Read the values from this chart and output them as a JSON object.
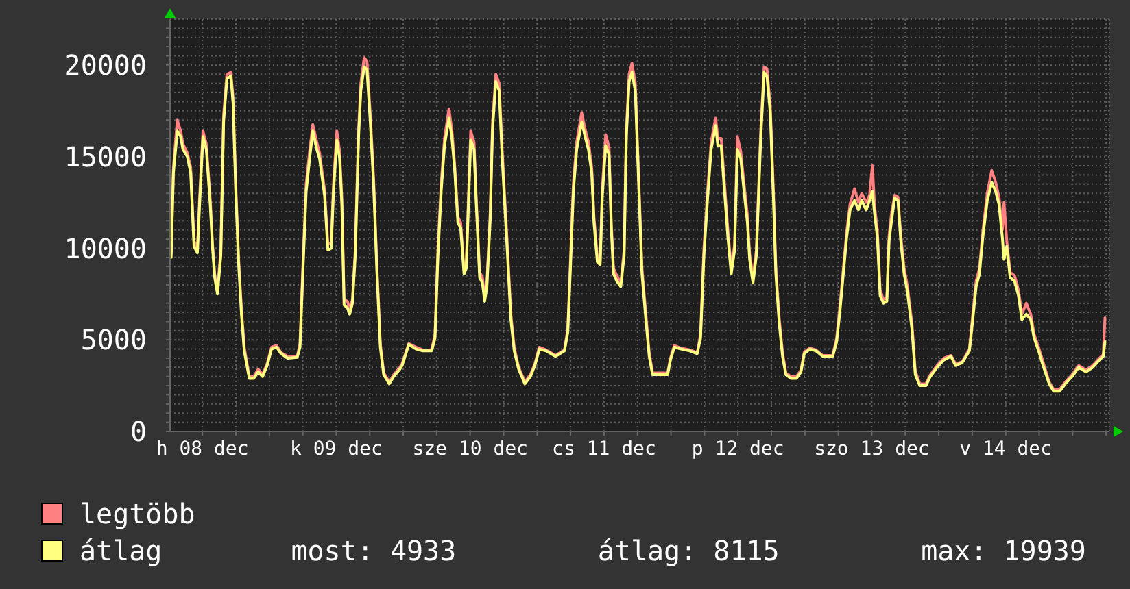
{
  "chart_data": {
    "type": "line",
    "grid": true,
    "legend": "bottom left",
    "xlim": [
      "--12-08T06:12",
      "--12-15T06:36"
    ],
    "xticks": [
      {
        "value": "--12-08T12:00",
        "label": "h 08 dec"
      },
      {
        "value": "--12-08T18:00",
        "label": null
      },
      {
        "value": "--12-09T00:00",
        "label": null
      },
      {
        "value": "--12-09T06:00",
        "label": null
      },
      {
        "value": "--12-09T12:00",
        "label": "k 09 dec"
      },
      {
        "value": "--12-09T18:00",
        "label": null
      },
      {
        "value": "--12-10T00:00",
        "label": null
      },
      {
        "value": "--12-10T06:00",
        "label": null
      },
      {
        "value": "--12-10T12:00",
        "label": "sze 10 dec"
      },
      {
        "value": "--12-10T18:00",
        "label": null
      },
      {
        "value": "--12-11T00:00",
        "label": null
      },
      {
        "value": "--12-11T06:00",
        "label": null
      },
      {
        "value": "--12-11T12:00",
        "label": "cs 11 dec"
      },
      {
        "value": "--12-11T18:00",
        "label": null
      },
      {
        "value": "--12-12T00:00",
        "label": null
      },
      {
        "value": "--12-12T06:00",
        "label": null
      },
      {
        "value": "--12-12T12:00",
        "label": "p 12 dec"
      },
      {
        "value": "--12-12T18:00",
        "label": null
      },
      {
        "value": "--12-13T00:00",
        "label": null
      },
      {
        "value": "--12-13T06:00",
        "label": null
      },
      {
        "value": "--12-13T12:00",
        "label": "szo 13 dec"
      },
      {
        "value": "--12-13T18:00",
        "label": null
      },
      {
        "value": "--12-14T00:00",
        "label": null
      },
      {
        "value": "--12-14T06:00",
        "label": null
      },
      {
        "value": "--12-14T12:00",
        "label": "v 14 dec"
      },
      {
        "value": "--12-14T18:00",
        "label": null
      },
      {
        "value": "--12-15T00:00",
        "label": null
      },
      {
        "value": "--12-15T06:00",
        "label": null
      }
    ],
    "ylim": [
      0,
      22500
    ],
    "yticks": [
      0,
      {
        "value": 500,
        "label": null
      },
      {
        "value": 1000,
        "label": null
      },
      {
        "value": 1500,
        "label": null
      },
      {
        "value": 2000,
        "label": null
      },
      {
        "value": 2500,
        "label": null
      },
      {
        "value": 3000,
        "label": null
      },
      {
        "value": 3500,
        "label": null
      },
      {
        "value": 4000,
        "label": null
      },
      {
        "value": 4500,
        "label": null
      },
      5000,
      {
        "value": 5500,
        "label": null
      },
      {
        "value": 6000,
        "label": null
      },
      {
        "value": 6500,
        "label": null
      },
      {
        "value": 7000,
        "label": null
      },
      {
        "value": 7500,
        "label": null
      },
      {
        "value": 8000,
        "label": null
      },
      {
        "value": 8500,
        "label": null
      },
      {
        "value": 9000,
        "label": null
      },
      {
        "value": 9500,
        "label": null
      },
      10000,
      {
        "value": 10500,
        "label": null
      },
      {
        "value": 11000,
        "label": null
      },
      {
        "value": 11500,
        "label": null
      },
      {
        "value": 12000,
        "label": null
      },
      {
        "value": 12500,
        "label": null
      },
      {
        "value": 13000,
        "label": null
      },
      {
        "value": 13500,
        "label": null
      },
      {
        "value": 14000,
        "label": null
      },
      {
        "value": 14500,
        "label": null
      },
      15000,
      {
        "value": 15500,
        "label": null
      },
      {
        "value": 16000,
        "label": null
      },
      {
        "value": 16500,
        "label": null
      },
      {
        "value": 17000,
        "label": null
      },
      {
        "value": 17500,
        "label": null
      },
      {
        "value": 18000,
        "label": null
      },
      {
        "value": 18500,
        "label": null
      },
      {
        "value": 19000,
        "label": null
      },
      {
        "value": 19500,
        "label": null
      },
      20000,
      {
        "value": 20500,
        "label": null
      },
      {
        "value": 21000,
        "label": null
      },
      {
        "value": 21500,
        "label": null
      },
      {
        "value": 22000,
        "label": null
      }
    ],
    "x": [
      "--12-08T06:24",
      "--12-08T06:48",
      "--12-08T07:30",
      "--12-08T08:06",
      "--12-08T08:30",
      "--12-08T09:18",
      "--12-08T09:54",
      "--12-08T10:30",
      "--12-08T11:06",
      "--12-08T11:30",
      "--12-08T12:06",
      "--12-08T12:42",
      "--12-08T13:24",
      "--12-08T13:48",
      "--12-08T14:12",
      "--12-08T14:42",
      "--12-08T15:18",
      "--12-08T15:48",
      "--12-08T16:24",
      "--12-08T17:06",
      "--12-08T17:30",
      "--12-08T18:00",
      "--12-08T18:30",
      "--12-08T19:00",
      "--12-08T19:30",
      "--12-08T20:24",
      "--12-08T21:12",
      "--12-08T22:00",
      "--12-08T22:48",
      "--12-08T23:36",
      "--12-09T00:24",
      "--12-09T01:18",
      "--12-09T02:06",
      "--12-09T03:18",
      "--12-09T05:00",
      "--12-09T05:30",
      "--12-09T06:00",
      "--12-09T06:36",
      "--12-09T07:18",
      "--12-09T07:48",
      "--12-09T08:30",
      "--12-09T09:00",
      "--12-09T09:54",
      "--12-09T10:30",
      "--12-09T11:06",
      "--12-09T11:30",
      "--12-09T12:06",
      "--12-09T12:36",
      "--12-09T13:00",
      "--12-09T13:24",
      "--12-09T14:00",
      "--12-09T14:24",
      "--12-09T14:54",
      "--12-09T15:24",
      "--12-09T16:00",
      "--12-09T16:24",
      "--12-09T17:00",
      "--12-09T17:30",
      "--12-09T18:06",
      "--12-09T18:42",
      "--12-09T19:18",
      "--12-09T19:54",
      "--12-09T20:30",
      "--12-09T21:30",
      "--12-09T22:18",
      "--12-09T23:24",
      "--12-09T23:48",
      "--12-10T01:00",
      "--12-10T02:18",
      "--12-10T03:30",
      "--12-10T05:06",
      "--12-10T05:42",
      "--12-10T06:12",
      "--12-10T06:48",
      "--12-10T07:24",
      "--12-10T08:12",
      "--12-10T08:42",
      "--12-10T09:12",
      "--12-10T09:48",
      "--12-10T10:18",
      "--12-10T10:54",
      "--12-10T11:18",
      "--12-10T11:42",
      "--12-10T12:06",
      "--12-10T12:42",
      "--12-10T13:06",
      "--12-10T13:42",
      "--12-10T14:12",
      "--12-10T14:36",
      "--12-10T15:00",
      "--12-10T15:36",
      "--12-10T16:00",
      "--12-10T16:36",
      "--12-10T17:12",
      "--12-10T17:48",
      "--12-10T18:42",
      "--12-10T19:18",
      "--12-10T19:54",
      "--12-10T20:42",
      "--12-10T21:48",
      "--12-10T22:48",
      "--12-10T23:36",
      "--12-11T00:24",
      "--12-11T01:36",
      "--12-11T03:18",
      "--12-11T04:54",
      "--12-11T05:30",
      "--12-11T06:00",
      "--12-11T06:30",
      "--12-11T07:06",
      "--12-11T08:00",
      "--12-11T08:36",
      "--12-11T09:12",
      "--12-11T09:48",
      "--12-11T10:12",
      "--12-11T10:48",
      "--12-11T11:18",
      "--12-11T11:42",
      "--12-11T12:18",
      "--12-11T12:54",
      "--12-11T13:18",
      "--12-11T13:42",
      "--12-11T14:18",
      "--12-11T15:00",
      "--12-11T15:36",
      "--12-11T16:00",
      "--12-11T16:30",
      "--12-11T17:00",
      "--12-11T17:36",
      "--12-11T18:12",
      "--12-11T18:48",
      "--12-11T19:30",
      "--12-11T20:06",
      "--12-11T20:42",
      "--12-11T21:42",
      "--12-11T23:24",
      "--12-11T23:54",
      "--12-12T00:36",
      "--12-12T01:48",
      "--12-12T03:24",
      "--12-12T04:42",
      "--12-12T05:18",
      "--12-12T05:54",
      "--12-12T06:36",
      "--12-12T07:12",
      "--12-12T08:00",
      "--12-12T08:24",
      "--12-12T09:00",
      "--12-12T09:36",
      "--12-12T10:12",
      "--12-12T10:48",
      "--12-12T11:24",
      "--12-12T11:54",
      "--12-12T12:30",
      "--12-12T13:06",
      "--12-12T13:42",
      "--12-12T14:06",
      "--12-12T14:42",
      "--12-12T15:18",
      "--12-12T16:06",
      "--12-12T16:42",
      "--12-12T17:12",
      "--12-12T17:48",
      "--12-12T18:24",
      "--12-12T18:48",
      "--12-12T19:24",
      "--12-12T20:00",
      "--12-12T20:36",
      "--12-12T21:30",
      "--12-12T22:30",
      "--12-12T23:18",
      "--12-12T23:54",
      "--12-13T00:54",
      "--12-13T02:00",
      "--12-13T03:12",
      "--12-13T05:00",
      "--12-13T05:42",
      "--12-13T06:18",
      "--12-13T06:54",
      "--12-13T07:30",
      "--12-13T08:06",
      "--12-13T08:54",
      "--12-13T09:36",
      "--12-13T10:12",
      "--12-13T11:00",
      "--12-13T11:36",
      "--12-13T12:06",
      "--12-13T12:30",
      "--12-13T13:00",
      "--12-13T13:30",
      "--12-13T14:06",
      "--12-13T14:42",
      "--12-13T15:06",
      "--12-13T15:30",
      "--12-13T16:06",
      "--12-13T16:42",
      "--12-13T17:12",
      "--12-13T17:48",
      "--12-13T18:24",
      "--12-13T19:12",
      "--12-13T19:48",
      "--12-13T20:36",
      "--12-13T21:42",
      "--12-13T22:30",
      "--12-13T23:42",
      "--12-14T00:54",
      "--12-14T02:12",
      "--12-14T03:00",
      "--12-14T04:12",
      "--12-14T05:30",
      "--12-14T06:06",
      "--12-14T06:42",
      "--12-14T07:18",
      "--12-14T07:54",
      "--12-14T08:42",
      "--12-14T09:30",
      "--12-14T10:12",
      "--12-14T10:48",
      "--12-14T11:24",
      "--12-14T11:42",
      "--12-14T12:12",
      "--12-14T12:48",
      "--12-14T13:36",
      "--12-14T14:18",
      "--12-14T14:54",
      "--12-14T15:42",
      "--12-14T16:30",
      "--12-14T17:06",
      "--12-14T17:54",
      "--12-14T18:42",
      "--12-14T19:48",
      "--12-14T20:36",
      "--12-14T21:42",
      "--12-14T22:42",
      "--12-14T23:54",
      "--12-15T01:06",
      "--12-15T02:24",
      "--12-15T03:36",
      "--12-15T04:48",
      "--12-15T05:30",
      "--12-15T05:48"
    ],
    "series": [
      {
        "name": "legtöbb",
        "color": "#ff8080",
        "values": [
          9700,
          14400,
          17000,
          16400,
          15700,
          15200,
          14400,
          10400,
          9900,
          12800,
          16400,
          15700,
          12700,
          10300,
          8600,
          7700,
          9900,
          17300,
          19500,
          19600,
          18200,
          13300,
          9400,
          6700,
          4600,
          3000,
          3000,
          3400,
          3100,
          3700,
          4600,
          4700,
          4300,
          4100,
          4100,
          4800,
          9000,
          13500,
          15500,
          16750,
          15800,
          15200,
          13200,
          10200,
          10300,
          13500,
          16400,
          15300,
          12700,
          7200,
          7100,
          6700,
          7200,
          9900,
          16500,
          19000,
          20400,
          20200,
          17300,
          13800,
          8900,
          4800,
          3200,
          2700,
          3100,
          3500,
          3700,
          4800,
          4600,
          4450,
          4450,
          5300,
          9800,
          13500,
          16000,
          17600,
          16500,
          14700,
          11700,
          11400,
          8800,
          9100,
          12800,
          16400,
          15800,
          12700,
          8700,
          8400,
          7300,
          8100,
          12000,
          16800,
          19500,
          19000,
          15000,
          10000,
          6400,
          4600,
          3500,
          2700,
          3100,
          3700,
          4600,
          4450,
          4150,
          4450,
          5600,
          9500,
          13500,
          15800,
          17400,
          16500,
          15800,
          14400,
          11700,
          9500,
          9300,
          13300,
          16200,
          15500,
          11400,
          8900,
          8500,
          8100,
          9900,
          16500,
          19500,
          20100,
          19000,
          14000,
          8900,
          6400,
          4300,
          3200,
          3200,
          3200,
          4000,
          4700,
          4550,
          4450,
          4300,
          5300,
          10000,
          13300,
          15800,
          17100,
          16000,
          16000,
          13500,
          11000,
          8900,
          10200,
          16100,
          15300,
          13500,
          11800,
          9700,
          8400,
          9900,
          16500,
          19900,
          19800,
          17800,
          12800,
          8900,
          6200,
          4300,
          3200,
          3000,
          3000,
          3350,
          4350,
          4550,
          4450,
          4150,
          4150,
          5100,
          6900,
          8900,
          10900,
          12400,
          13250,
          12500,
          13000,
          12500,
          12900,
          14500,
          12300,
          11000,
          7700,
          7200,
          7300,
          10700,
          11800,
          12900,
          12800,
          10700,
          8900,
          7900,
          5900,
          3300,
          2600,
          2600,
          3100,
          3600,
          4000,
          4150,
          3700,
          3800,
          4500,
          6400,
          8200,
          8900,
          10900,
          13000,
          14250,
          13600,
          12800,
          11000,
          12500,
          10400,
          8700,
          8500,
          7700,
          6400,
          7000,
          6400,
          5300,
          4600,
          3800,
          2700,
          2300,
          2300,
          2700,
          3100,
          3600,
          3350,
          3600,
          4000,
          4200,
          6200
        ]
      },
      {
        "name": "átlag",
        "color": "#ffff80",
        "values": [
          9500,
          14100,
          16400,
          16100,
          15400,
          15000,
          14100,
          10100,
          9750,
          12400,
          16100,
          15400,
          12400,
          10100,
          8400,
          7500,
          9600,
          16900,
          19250,
          19400,
          17900,
          12900,
          9100,
          6400,
          4400,
          2900,
          2900,
          3250,
          3000,
          3600,
          4500,
          4600,
          4250,
          4000,
          4050,
          4600,
          8600,
          13100,
          15100,
          16400,
          15400,
          14900,
          12900,
          9900,
          10000,
          13100,
          15900,
          14900,
          12400,
          6900,
          6750,
          6400,
          7000,
          9600,
          16100,
          18600,
          19900,
          19750,
          16900,
          13400,
          8600,
          4600,
          3100,
          2600,
          3000,
          3400,
          3600,
          4750,
          4500,
          4400,
          4400,
          5100,
          9400,
          13100,
          15600,
          17100,
          16100,
          14400,
          11400,
          11100,
          8600,
          8900,
          12400,
          15900,
          15400,
          12400,
          8400,
          8100,
          7100,
          7900,
          11600,
          16400,
          19100,
          18600,
          14600,
          9600,
          6100,
          4400,
          3400,
          2600,
          3000,
          3600,
          4500,
          4400,
          4100,
          4400,
          5400,
          9100,
          13100,
          15400,
          16900,
          16100,
          15400,
          14100,
          11400,
          9250,
          9100,
          12900,
          15600,
          15100,
          11100,
          8600,
          8200,
          7900,
          9600,
          16100,
          19100,
          19600,
          18600,
          13600,
          8600,
          6100,
          4100,
          3100,
          3100,
          3100,
          3900,
          4600,
          4500,
          4400,
          4250,
          5100,
          9600,
          12900,
          15400,
          16700,
          15600,
          15600,
          13100,
          10600,
          8600,
          9900,
          15400,
          14900,
          13100,
          11400,
          9400,
          8100,
          9600,
          16100,
          19600,
          19400,
          17400,
          12400,
          8600,
          5900,
          4100,
          3100,
          2900,
          2900,
          3250,
          4250,
          4500,
          4400,
          4100,
          4100,
          4900,
          6600,
          8600,
          10600,
          12100,
          12600,
          12100,
          12600,
          12100,
          12600,
          13100,
          11900,
          10600,
          7400,
          7000,
          7100,
          10400,
          11400,
          12750,
          12600,
          10400,
          8600,
          7600,
          5600,
          3100,
          2500,
          2500,
          3000,
          3500,
          3900,
          4100,
          3600,
          3750,
          4400,
          6100,
          7900,
          8600,
          10600,
          12600,
          13600,
          13100,
          12400,
          10600,
          9400,
          10100,
          8400,
          8200,
          7400,
          6100,
          6400,
          6100,
          5100,
          4400,
          3600,
          2600,
          2200,
          2200,
          2600,
          3000,
          3500,
          3250,
          3500,
          3900,
          4100,
          4900
        ]
      }
    ],
    "annotations": [
      "most: 4933",
      "átlag: 8115",
      "max: 19939"
    ]
  }
}
